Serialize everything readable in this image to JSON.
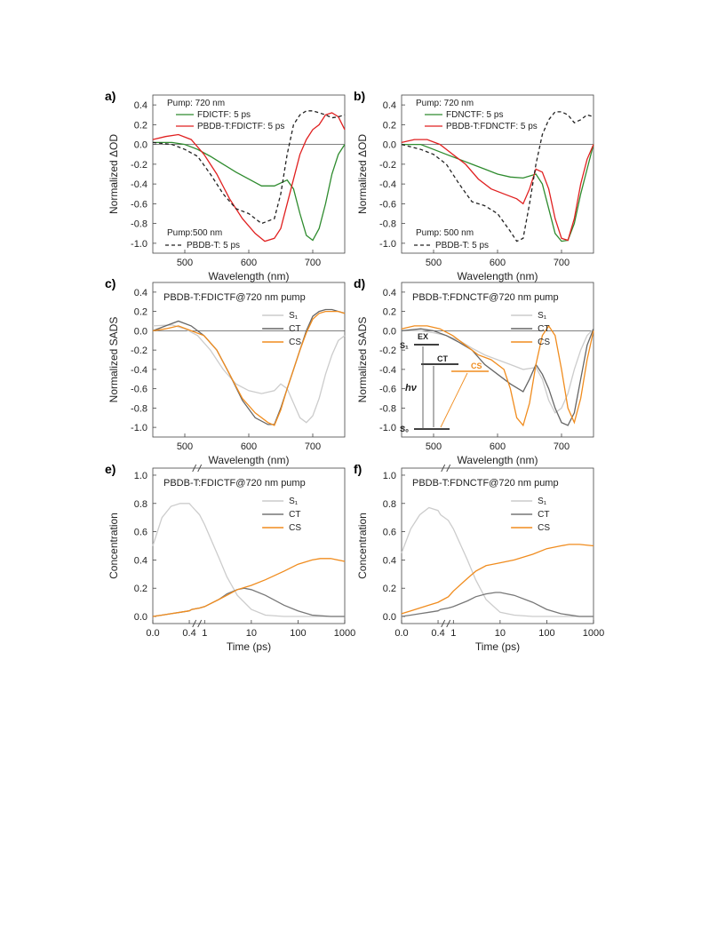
{
  "chart_data": [
    {
      "panel": "a)",
      "type": "line",
      "xlabel": "Wavelength (nm)",
      "ylabel": "Normalized ΔOD",
      "xlim": [
        450,
        750
      ],
      "ylim": [
        -1.1,
        0.5
      ],
      "xticks": [
        500,
        600,
        700
      ],
      "yticks": [
        0.4,
        0.2,
        0.0,
        -0.2,
        -0.4,
        -0.6,
        -0.8,
        -1.0
      ],
      "annotations": [
        "Pump: 720 nm",
        "Pump:500 nm"
      ],
      "series": [
        {
          "name": "FDICTF: 5 ps",
          "color": "#2e8b2e",
          "dash": "solid",
          "x": [
            450,
            480,
            500,
            520,
            540,
            560,
            580,
            600,
            620,
            640,
            660,
            670,
            680,
            690,
            700,
            710,
            720,
            730,
            740,
            750
          ],
          "y": [
            0.02,
            0.02,
            0.0,
            -0.05,
            -0.12,
            -0.2,
            -0.28,
            -0.35,
            -0.42,
            -0.42,
            -0.36,
            -0.45,
            -0.7,
            -0.92,
            -0.97,
            -0.85,
            -0.6,
            -0.3,
            -0.1,
            0.0
          ]
        },
        {
          "name": "PBDB-T:FDICTF: 5 ps",
          "color": "#e02020",
          "dash": "solid",
          "x": [
            450,
            470,
            490,
            510,
            530,
            550,
            570,
            590,
            610,
            625,
            640,
            650,
            660,
            670,
            680,
            690,
            700,
            710,
            720,
            730,
            740,
            750
          ],
          "y": [
            0.05,
            0.08,
            0.1,
            0.05,
            -0.1,
            -0.3,
            -0.55,
            -0.75,
            -0.9,
            -0.98,
            -0.95,
            -0.85,
            -0.6,
            -0.35,
            -0.1,
            0.05,
            0.15,
            0.2,
            0.3,
            0.32,
            0.28,
            0.15
          ]
        },
        {
          "name": "PBDB-T: 5 ps",
          "color": "#222222",
          "dash": "4,3",
          "x": [
            450,
            480,
            500,
            520,
            540,
            560,
            580,
            600,
            620,
            640,
            650,
            660,
            670,
            680,
            690,
            700,
            710,
            720,
            730,
            740,
            750
          ],
          "y": [
            0.02,
            0.0,
            -0.05,
            -0.12,
            -0.3,
            -0.5,
            -0.65,
            -0.7,
            -0.8,
            -0.75,
            -0.5,
            -0.1,
            0.2,
            0.3,
            0.34,
            0.34,
            0.32,
            0.3,
            0.27,
            0.28,
            0.3
          ]
        }
      ]
    },
    {
      "panel": "b)",
      "type": "line",
      "xlabel": "Wavelength (nm)",
      "ylabel": "Normalized ΔOD",
      "xlim": [
        450,
        750
      ],
      "ylim": [
        -1.1,
        0.5
      ],
      "xticks": [
        500,
        600,
        700
      ],
      "yticks": [
        0.4,
        0.2,
        0.0,
        -0.2,
        -0.4,
        -0.6,
        -0.8,
        -1.0
      ],
      "annotations": [
        "Pump: 720 nm",
        "Pump: 500 nm"
      ],
      "series": [
        {
          "name": "FDNCTF: 5 ps",
          "color": "#2e8b2e",
          "dash": "solid",
          "x": [
            450,
            480,
            500,
            520,
            540,
            560,
            580,
            600,
            620,
            640,
            660,
            670,
            680,
            690,
            700,
            710,
            720,
            730,
            740,
            750
          ],
          "y": [
            0.0,
            0.0,
            -0.05,
            -0.1,
            -0.15,
            -0.2,
            -0.25,
            -0.3,
            -0.33,
            -0.34,
            -0.3,
            -0.4,
            -0.65,
            -0.9,
            -0.98,
            -0.97,
            -0.8,
            -0.5,
            -0.25,
            0.0
          ]
        },
        {
          "name": "PBDB-T:FDNCTF: 5 ps",
          "color": "#e02020",
          "dash": "solid",
          "x": [
            450,
            470,
            490,
            510,
            530,
            550,
            570,
            590,
            610,
            630,
            640,
            650,
            660,
            670,
            680,
            690,
            700,
            710,
            720,
            730,
            740,
            750
          ],
          "y": [
            0.02,
            0.05,
            0.05,
            0.0,
            -0.1,
            -0.2,
            -0.35,
            -0.45,
            -0.5,
            -0.55,
            -0.6,
            -0.45,
            -0.25,
            -0.28,
            -0.45,
            -0.75,
            -0.95,
            -0.97,
            -0.75,
            -0.4,
            -0.15,
            0.0
          ]
        },
        {
          "name": "PBDB-T: 5 ps",
          "color": "#222222",
          "dash": "4,3",
          "x": [
            450,
            480,
            500,
            520,
            540,
            560,
            580,
            600,
            620,
            630,
            640,
            650,
            660,
            670,
            680,
            690,
            700,
            710,
            720,
            730,
            740,
            750
          ],
          "y": [
            0.0,
            -0.05,
            -0.1,
            -0.2,
            -0.4,
            -0.58,
            -0.62,
            -0.7,
            -0.88,
            -0.98,
            -0.95,
            -0.6,
            -0.2,
            0.1,
            0.25,
            0.33,
            0.33,
            0.3,
            0.22,
            0.25,
            0.3,
            0.28
          ]
        }
      ]
    },
    {
      "panel": "c)",
      "type": "line",
      "title": "PBDB-T:FDICTF@720 nm pump",
      "xlabel": "Wavelength (nm)",
      "ylabel": "Normalized SADS",
      "xlim": [
        450,
        750
      ],
      "ylim": [
        -1.1,
        0.5
      ],
      "xticks": [
        500,
        600,
        700
      ],
      "yticks": [
        0.4,
        0.2,
        0.0,
        -0.2,
        -0.4,
        -0.6,
        -0.8,
        -1.0
      ],
      "series": [
        {
          "name": "S₁",
          "color": "#cccccc",
          "dash": "solid",
          "x": [
            450,
            480,
            500,
            520,
            540,
            560,
            580,
            600,
            620,
            640,
            650,
            660,
            670,
            680,
            690,
            700,
            710,
            720,
            730,
            740,
            750
          ],
          "y": [
            0.05,
            0.06,
            0.02,
            -0.05,
            -0.2,
            -0.4,
            -0.55,
            -0.62,
            -0.65,
            -0.62,
            -0.55,
            -0.6,
            -0.75,
            -0.9,
            -0.95,
            -0.88,
            -0.7,
            -0.45,
            -0.25,
            -0.1,
            -0.05
          ]
        },
        {
          "name": "CT",
          "color": "#666666",
          "dash": "solid",
          "x": [
            450,
            470,
            490,
            510,
            530,
            550,
            570,
            590,
            610,
            630,
            640,
            650,
            660,
            670,
            680,
            690,
            700,
            710,
            720,
            730,
            740,
            750
          ],
          "y": [
            0.0,
            0.05,
            0.1,
            0.05,
            -0.05,
            -0.2,
            -0.45,
            -0.72,
            -0.9,
            -0.97,
            -0.97,
            -0.8,
            -0.6,
            -0.4,
            -0.2,
            0.0,
            0.15,
            0.2,
            0.22,
            0.22,
            0.2,
            0.18
          ]
        },
        {
          "name": "CS",
          "color": "#f08c1e",
          "dash": "solid",
          "x": [
            450,
            470,
            490,
            510,
            530,
            550,
            570,
            590,
            610,
            630,
            640,
            650,
            660,
            670,
            680,
            690,
            700,
            710,
            720,
            730,
            740,
            750
          ],
          "y": [
            0.0,
            0.02,
            0.05,
            0.0,
            -0.05,
            -0.2,
            -0.45,
            -0.7,
            -0.85,
            -0.95,
            -0.98,
            -0.82,
            -0.6,
            -0.4,
            -0.2,
            -0.02,
            0.12,
            0.18,
            0.2,
            0.2,
            0.2,
            0.18
          ]
        }
      ]
    },
    {
      "panel": "d)",
      "type": "line",
      "title": "PBDB-T:FDNCTF@720 nm pump",
      "xlabel": "Wavelength (nm)",
      "ylabel": "Normalized SADS",
      "xlim": [
        450,
        750
      ],
      "ylim": [
        -1.1,
        0.5
      ],
      "xticks": [
        500,
        600,
        700
      ],
      "yticks": [
        0.4,
        0.2,
        0.0,
        -0.2,
        -0.4,
        -0.6,
        -0.8,
        -1.0
      ],
      "inset_labels": [
        "S₁",
        "EX",
        "CT",
        "CS",
        "hν",
        "S₀"
      ],
      "series": [
        {
          "name": "S₁",
          "color": "#cccccc",
          "dash": "solid",
          "x": [
            450,
            480,
            500,
            520,
            540,
            560,
            580,
            600,
            620,
            640,
            660,
            670,
            680,
            690,
            700,
            710,
            720,
            730,
            740,
            750
          ],
          "y": [
            0.0,
            0.0,
            -0.02,
            -0.05,
            -0.1,
            -0.18,
            -0.25,
            -0.3,
            -0.35,
            -0.4,
            -0.38,
            -0.5,
            -0.72,
            -0.85,
            -0.8,
            -0.65,
            -0.4,
            -0.2,
            -0.05,
            0.02
          ]
        },
        {
          "name": "CT",
          "color": "#666666",
          "dash": "solid",
          "x": [
            450,
            480,
            500,
            520,
            540,
            560,
            580,
            600,
            620,
            640,
            650,
            660,
            670,
            680,
            690,
            700,
            710,
            720,
            730,
            740,
            750
          ],
          "y": [
            0.0,
            0.02,
            0.0,
            -0.05,
            -0.12,
            -0.2,
            -0.35,
            -0.45,
            -0.55,
            -0.63,
            -0.5,
            -0.35,
            -0.45,
            -0.6,
            -0.8,
            -0.95,
            -0.98,
            -0.85,
            -0.5,
            -0.15,
            0.02
          ]
        },
        {
          "name": "CS",
          "color": "#f08c1e",
          "dash": "solid",
          "x": [
            450,
            470,
            490,
            510,
            530,
            550,
            570,
            590,
            610,
            620,
            630,
            640,
            650,
            660,
            670,
            680,
            690,
            700,
            710,
            720,
            730,
            740,
            750
          ],
          "y": [
            0.02,
            0.05,
            0.05,
            0.02,
            -0.05,
            -0.15,
            -0.25,
            -0.3,
            -0.4,
            -0.6,
            -0.9,
            -0.98,
            -0.75,
            -0.35,
            -0.05,
            0.05,
            -0.05,
            -0.4,
            -0.8,
            -0.95,
            -0.7,
            -0.3,
            0.0
          ]
        }
      ]
    },
    {
      "panel": "e)",
      "type": "line",
      "title": "PBDB-T:FDICTF@720 nm pump",
      "xlabel": "Time (ps)",
      "ylabel": "Concentration",
      "xlim": [
        0.0,
        1000
      ],
      "ylim": [
        -0.05,
        1.05
      ],
      "xticks": [
        "0.0",
        "0.4",
        "1",
        "10",
        "100",
        "1000"
      ],
      "yticks": [
        1.0,
        0.8,
        0.6,
        0.4,
        0.2,
        0.0
      ],
      "series": [
        {
          "name": "S₁",
          "color": "#cccccc",
          "dash": "solid",
          "x": [
            0.0,
            0.1,
            0.2,
            0.3,
            0.4,
            0.5,
            0.8,
            1,
            2,
            3,
            5,
            10,
            20,
            50,
            100,
            300,
            1000
          ],
          "y": [
            0.5,
            0.7,
            0.78,
            0.8,
            0.8,
            0.78,
            0.72,
            0.65,
            0.42,
            0.28,
            0.15,
            0.05,
            0.01,
            0.0,
            0.0,
            0.0,
            0.0
          ]
        },
        {
          "name": "CT",
          "color": "#777777",
          "dash": "solid",
          "x": [
            0.0,
            0.1,
            0.2,
            0.3,
            0.4,
            0.5,
            0.8,
            1,
            2,
            3,
            5,
            7,
            10,
            20,
            50,
            100,
            200,
            500,
            1000
          ],
          "y": [
            0.0,
            0.01,
            0.02,
            0.03,
            0.04,
            0.05,
            0.06,
            0.07,
            0.12,
            0.16,
            0.19,
            0.2,
            0.19,
            0.15,
            0.08,
            0.04,
            0.01,
            0.0,
            0.0
          ]
        },
        {
          "name": "CS",
          "color": "#f08c1e",
          "dash": "solid",
          "x": [
            0.0,
            0.1,
            0.2,
            0.3,
            0.4,
            0.5,
            0.8,
            1,
            2,
            3,
            5,
            10,
            20,
            50,
            100,
            200,
            300,
            500,
            1000
          ],
          "y": [
            0.0,
            0.01,
            0.02,
            0.03,
            0.04,
            0.05,
            0.06,
            0.07,
            0.12,
            0.15,
            0.19,
            0.22,
            0.26,
            0.32,
            0.37,
            0.4,
            0.41,
            0.41,
            0.39
          ]
        }
      ]
    },
    {
      "panel": "f)",
      "type": "line",
      "title": "PBDB-T:FDNCTF@720 nm pump",
      "xlabel": "Time (ps)",
      "ylabel": "Concentration",
      "xlim": [
        0.0,
        1000
      ],
      "ylim": [
        -0.05,
        1.05
      ],
      "xticks": [
        "0.0",
        "0.4",
        "1",
        "10",
        "100",
        "1000"
      ],
      "yticks": [
        1.0,
        0.8,
        0.6,
        0.4,
        0.2,
        0.0
      ],
      "series": [
        {
          "name": "S₁",
          "color": "#cccccc",
          "dash": "solid",
          "x": [
            0.0,
            0.1,
            0.2,
            0.3,
            0.4,
            0.5,
            0.8,
            1,
            2,
            3,
            5,
            10,
            20,
            50,
            100,
            1000
          ],
          "y": [
            0.45,
            0.62,
            0.72,
            0.77,
            0.75,
            0.72,
            0.68,
            0.62,
            0.4,
            0.26,
            0.12,
            0.03,
            0.01,
            0.0,
            0.0,
            0.0
          ]
        },
        {
          "name": "CT",
          "color": "#777777",
          "dash": "solid",
          "x": [
            0.0,
            0.1,
            0.2,
            0.3,
            0.4,
            0.5,
            0.8,
            1,
            2,
            3,
            5,
            8,
            10,
            20,
            50,
            100,
            200,
            500,
            1000
          ],
          "y": [
            0.0,
            0.01,
            0.02,
            0.03,
            0.04,
            0.05,
            0.06,
            0.07,
            0.11,
            0.14,
            0.16,
            0.17,
            0.17,
            0.15,
            0.1,
            0.05,
            0.02,
            0.0,
            0.0
          ]
        },
        {
          "name": "CS",
          "color": "#f08c1e",
          "dash": "solid",
          "x": [
            0.0,
            0.1,
            0.2,
            0.3,
            0.4,
            0.5,
            0.8,
            1,
            2,
            3,
            5,
            10,
            20,
            50,
            100,
            200,
            300,
            500,
            1000
          ],
          "y": [
            0.02,
            0.04,
            0.06,
            0.08,
            0.1,
            0.11,
            0.14,
            0.18,
            0.27,
            0.32,
            0.36,
            0.38,
            0.4,
            0.44,
            0.48,
            0.5,
            0.51,
            0.51,
            0.5
          ]
        }
      ]
    }
  ]
}
